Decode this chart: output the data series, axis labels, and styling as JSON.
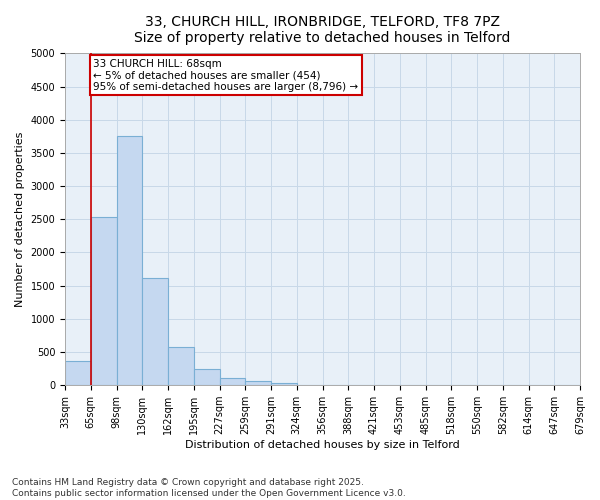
{
  "title_line1": "33, CHURCH HILL, IRONBRIDGE, TELFORD, TF8 7PZ",
  "title_line2": "Size of property relative to detached houses in Telford",
  "xlabel": "Distribution of detached houses by size in Telford",
  "ylabel": "Number of detached properties",
  "bin_labels": [
    "33sqm",
    "65sqm",
    "98sqm",
    "130sqm",
    "162sqm",
    "195sqm",
    "227sqm",
    "259sqm",
    "291sqm",
    "324sqm",
    "356sqm",
    "388sqm",
    "421sqm",
    "453sqm",
    "485sqm",
    "518sqm",
    "550sqm",
    "582sqm",
    "614sqm",
    "647sqm",
    "679sqm"
  ],
  "values": [
    370,
    2530,
    3750,
    1620,
    570,
    240,
    110,
    60,
    30,
    10,
    5,
    5,
    5,
    5,
    5,
    0,
    0,
    0,
    0,
    0
  ],
  "bar_color": "#c5d8f0",
  "bar_edge_color": "#7aafd4",
  "vline_x": 0.5,
  "vline_color": "#cc0000",
  "annotation_text": "33 CHURCH HILL: 68sqm\n← 5% of detached houses are smaller (454)\n95% of semi-detached houses are larger (8,796) →",
  "annotation_box_color": "#ffffff",
  "annotation_box_edge": "#cc0000",
  "ylim": [
    0,
    5000
  ],
  "yticks": [
    0,
    500,
    1000,
    1500,
    2000,
    2500,
    3000,
    3500,
    4000,
    4500,
    5000
  ],
  "grid_color": "#c8d8e8",
  "background_color": "#e8f0f8",
  "footer_line1": "Contains HM Land Registry data © Crown copyright and database right 2025.",
  "footer_line2": "Contains public sector information licensed under the Open Government Licence v3.0.",
  "title_fontsize": 10,
  "subtitle_fontsize": 9,
  "axis_label_fontsize": 8,
  "tick_fontsize": 7,
  "annotation_fontsize": 7.5,
  "footer_fontsize": 6.5
}
